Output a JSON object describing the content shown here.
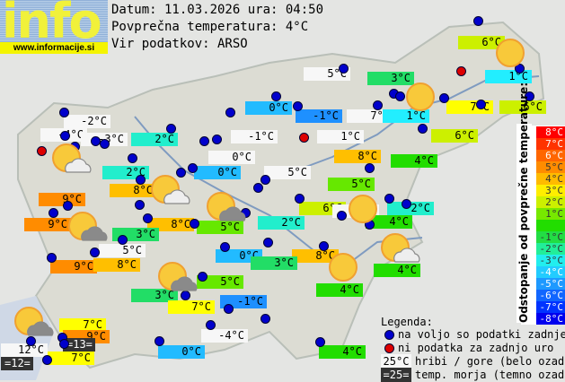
{
  "header": {
    "logo_text": "info",
    "logo_url": "www.informacije.si",
    "date_line": "Datum: 11.03.2026 ura: 04:50",
    "avg_temp_line": "Povprečna temperatura: 4°C",
    "source_line": "Vir podatkov: ARSO"
  },
  "temp_colors": {
    "9": "#ff8c00",
    "8": "#ffbf00",
    "7": "#ffff00",
    "6": "#ccf000",
    "5": "#66e800",
    "4": "#22dd00",
    "3": "#22dd66",
    "2": "#22eecc",
    "1": "#22eeff",
    "0": "#22bbff",
    "-1": "#1e90ff"
  },
  "stations": [
    {
      "text": "6°C",
      "t": 6
    },
    {
      "text": "1°C",
      "t": 1
    },
    {
      "text": "5°C",
      "type": "hill"
    },
    {
      "text": "3°C",
      "t": 3
    },
    {
      "text": "0°C",
      "t": 0
    },
    {
      "text": "-1°C",
      "t": -1
    },
    {
      "text": "7°C",
      "type": "hill"
    },
    {
      "text": "1°C",
      "t": 1
    },
    {
      "text": "7°C",
      "t": 7
    },
    {
      "text": "6°C",
      "t": 6
    },
    {
      "text": "-2°C",
      "type": "hill"
    },
    {
      "text": "-4°C",
      "type": "hill"
    },
    {
      "text": "-3°C",
      "type": "hill"
    },
    {
      "text": "2°C",
      "t": 2
    },
    {
      "text": "1°C",
      "type": "hill"
    },
    {
      "text": "6°C",
      "t": 6
    },
    {
      "text": "-1°C",
      "type": "hill"
    },
    {
      "text": "0°C",
      "type": "hill"
    },
    {
      "text": "8°C",
      "t": 8
    },
    {
      "text": "4°C",
      "t": 4
    },
    {
      "text": "0°C",
      "t": 0
    },
    {
      "text": "2°C",
      "t": 2
    },
    {
      "text": "5°C",
      "type": "hill"
    },
    {
      "text": "8°C",
      "t": 8
    },
    {
      "text": "5°C",
      "t": 5
    },
    {
      "text": "9°C",
      "t": 9
    },
    {
      "text": "6°C",
      "t": 6
    },
    {
      "text": "4°C",
      "type": "hill"
    },
    {
      "text": "2°C",
      "t": 2
    },
    {
      "text": "9°C",
      "t": 9
    },
    {
      "text": "8°C",
      "t": 8
    },
    {
      "text": "5°C",
      "t": 5
    },
    {
      "text": "2°C",
      "t": 2
    },
    {
      "text": "4°C",
      "t": 4
    },
    {
      "text": "3°C",
      "t": 3
    },
    {
      "text": "5°C",
      "type": "hill"
    },
    {
      "text": "0°C",
      "t": 0
    },
    {
      "text": "8°C",
      "t": 8
    },
    {
      "text": "9°C",
      "t": 9
    },
    {
      "text": "8°C",
      "t": 8
    },
    {
      "text": "3°C",
      "t": 3
    },
    {
      "text": "4°C",
      "t": 4
    },
    {
      "text": "5°C",
      "t": 5
    },
    {
      "text": "3°C",
      "t": 3
    },
    {
      "text": "7°C",
      "t": 7
    },
    {
      "text": "-1°C",
      "t": -1
    },
    {
      "text": "4°C",
      "t": 4
    },
    {
      "text": "7°C",
      "t": 7
    },
    {
      "text": "9°C",
      "t": 9
    },
    {
      "text": "=13=",
      "type": "sea"
    },
    {
      "text": "-4°C",
      "type": "hill"
    },
    {
      "text": "12°C",
      "type": "hill"
    },
    {
      "text": "=12=",
      "type": "sea"
    },
    {
      "text": "7°C",
      "t": 7
    },
    {
      "text": "0°C",
      "t": 0
    },
    {
      "text": "4°C",
      "t": 4
    }
  ],
  "scale": {
    "title": "Odstopanje od povprečne temperature:",
    "rows": [
      {
        "label": "8°C",
        "color": "#ff0000"
      },
      {
        "label": "7°C",
        "color": "#ff3300"
      },
      {
        "label": "6°C",
        "color": "#ff6600"
      },
      {
        "label": "5°C",
        "color": "#ff8c00"
      },
      {
        "label": "4°C",
        "color": "#ffbb00"
      },
      {
        "label": "3°C",
        "color": "#ffee00"
      },
      {
        "label": "2°C",
        "color": "#ccf000"
      },
      {
        "label": "1°C",
        "color": "#77e800"
      },
      {
        "label": "",
        "color": "#22dd00"
      },
      {
        "label": "-1°C",
        "color": "#22dd44"
      },
      {
        "label": "-2°C",
        "color": "#22ee99"
      },
      {
        "label": "-3°C",
        "color": "#22eeee"
      },
      {
        "label": "-4°C",
        "color": "#22ccff"
      },
      {
        "label": "-5°C",
        "color": "#1e99ff"
      },
      {
        "label": "-6°C",
        "color": "#1166ff"
      },
      {
        "label": "-7°C",
        "color": "#0033ff"
      },
      {
        "label": "-8°C",
        "color": "#0000ee"
      }
    ]
  },
  "legend": {
    "title": "Legenda:",
    "blue_dot": "na voljo so podatki zadnje ure",
    "red_dot": "ni podatka za zadnjo uro",
    "hill_sample": "25°C",
    "hill_text": "hribi / gore (belo ozadje)",
    "sea_sample": "=25=",
    "sea_text": "temp. morja (temno ozadje)"
  }
}
